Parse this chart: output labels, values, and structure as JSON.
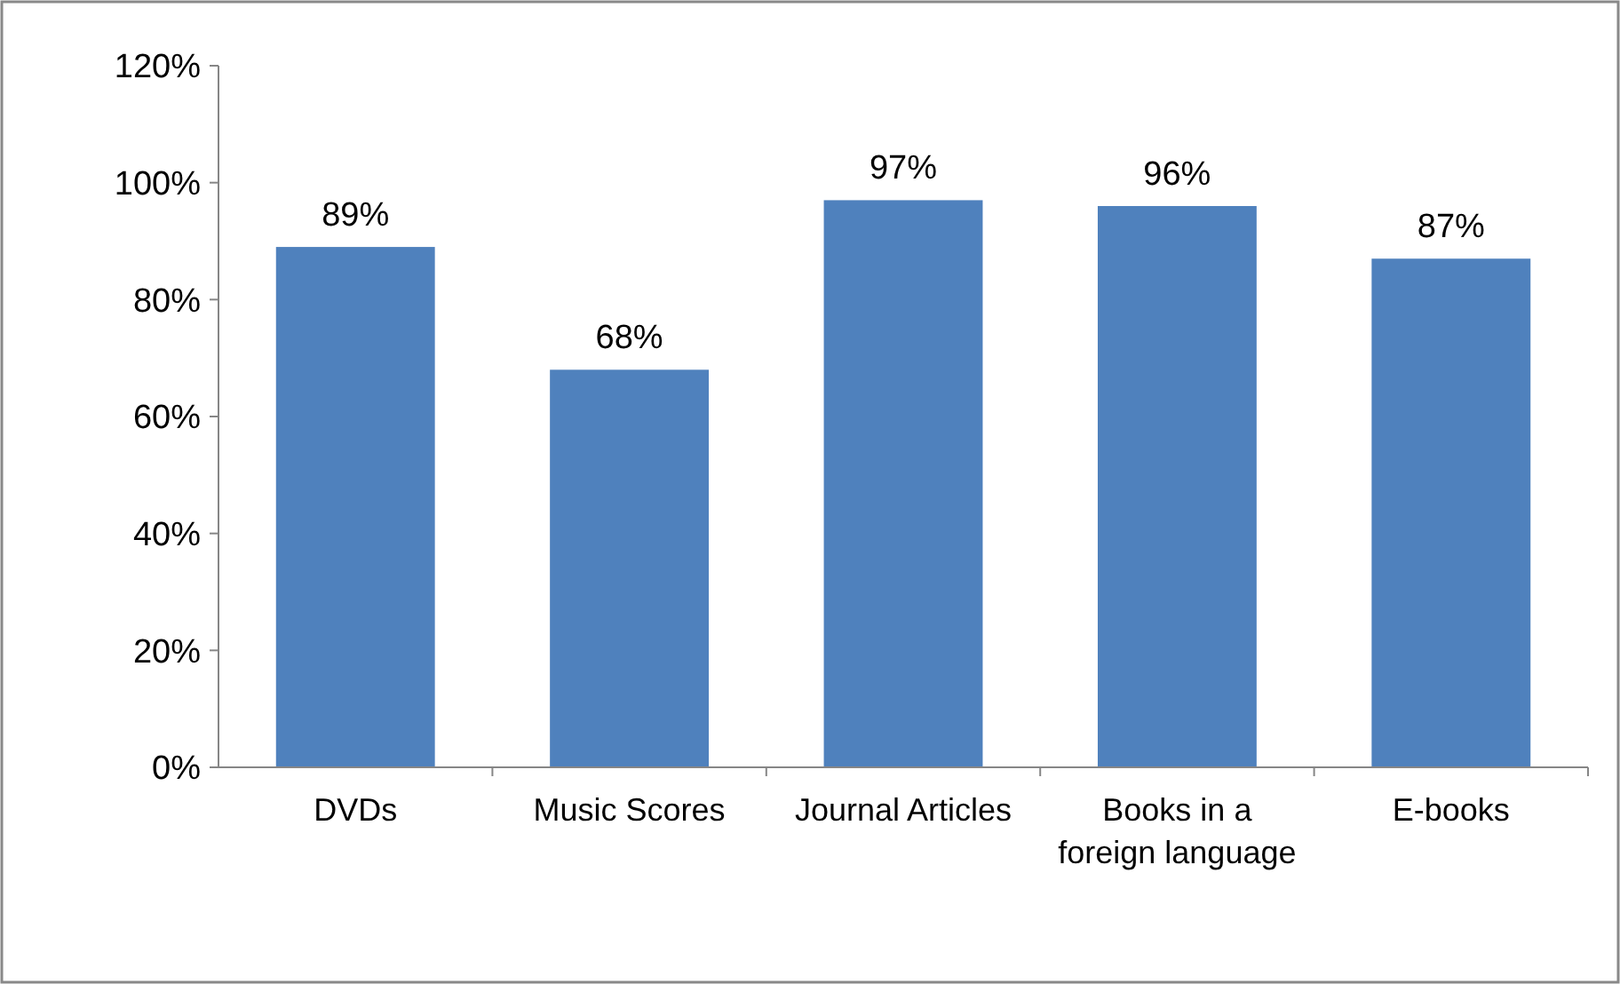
{
  "chart_data": {
    "type": "bar",
    "categories": [
      "DVDs",
      "Music Scores",
      "Journal Articles",
      "Books in a foreign language",
      "E-books"
    ],
    "values": [
      89,
      68,
      97,
      96,
      87
    ],
    "color": "#4f81bd",
    "value_labels": [
      "89%",
      "68%",
      "97%",
      "96%",
      "87%"
    ],
    "ylim": [
      0,
      120
    ],
    "yticks": [
      {
        "value": 0,
        "label": "0%"
      },
      {
        "value": 20,
        "label": "20%"
      },
      {
        "value": 40,
        "label": "40%"
      },
      {
        "value": 60,
        "label": "60%"
      },
      {
        "value": 80,
        "label": "80%"
      },
      {
        "value": 100,
        "label": "100%"
      },
      {
        "value": 120,
        "label": "120%"
      }
    ],
    "grid": false
  }
}
